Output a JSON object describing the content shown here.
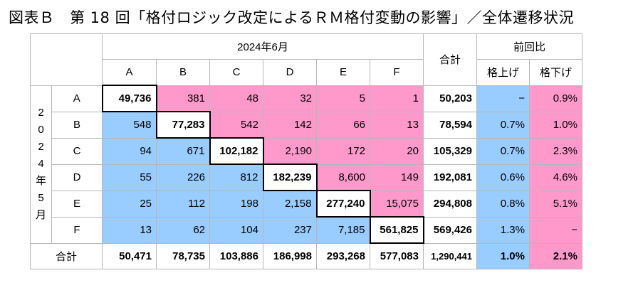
{
  "title": "図表Ｂ　第 18 回「格付ロジック改定によるＲＭ格付変動の影響」／全体遷移状況",
  "header": {
    "period_label": "2024年6月",
    "total_label": "合計",
    "prev_ratio_label": "前回比",
    "upgrade_label": "格上げ",
    "downgrade_label": "格下げ",
    "columns": [
      "A",
      "B",
      "C",
      "D",
      "E",
      "F"
    ]
  },
  "row_group": {
    "label_chars": [
      "2",
      "0",
      "2",
      "4",
      "年",
      "5",
      "月"
    ]
  },
  "rows": [
    {
      "label": "A",
      "cells": [
        "49,736",
        "381",
        "48",
        "32",
        "5",
        "1"
      ],
      "total": "50,203",
      "up": "−",
      "down": "0.9%"
    },
    {
      "label": "B",
      "cells": [
        "548",
        "77,283",
        "542",
        "142",
        "66",
        "13"
      ],
      "total": "78,594",
      "up": "0.7%",
      "down": "1.0%"
    },
    {
      "label": "C",
      "cells": [
        "94",
        "671",
        "102,182",
        "2,190",
        "172",
        "20"
      ],
      "total": "105,329",
      "up": "0.7%",
      "down": "2.3%"
    },
    {
      "label": "D",
      "cells": [
        "55",
        "226",
        "812",
        "182,239",
        "8,600",
        "149"
      ],
      "total": "192,081",
      "up": "0.6%",
      "down": "4.6%"
    },
    {
      "label": "E",
      "cells": [
        "25",
        "112",
        "198",
        "2,158",
        "277,240",
        "15,075"
      ],
      "total": "294,808",
      "up": "0.8%",
      "down": "5.1%"
    },
    {
      "label": "F",
      "cells": [
        "13",
        "62",
        "104",
        "237",
        "7,185",
        "561,825"
      ],
      "total": "569,426",
      "up": "1.3%",
      "down": "−"
    }
  ],
  "totals_row": {
    "label": "合計",
    "cells": [
      "50,471",
      "78,735",
      "103,886",
      "186,998",
      "293,268",
      "577,083"
    ],
    "total": "1,290,441",
    "up": "1.0%",
    "down": "2.1%"
  },
  "colors": {
    "downgrade": "#ff99cc",
    "upgrade": "#99ccff",
    "grid": "#b7b7b7",
    "emphasis_border": "#000000"
  }
}
